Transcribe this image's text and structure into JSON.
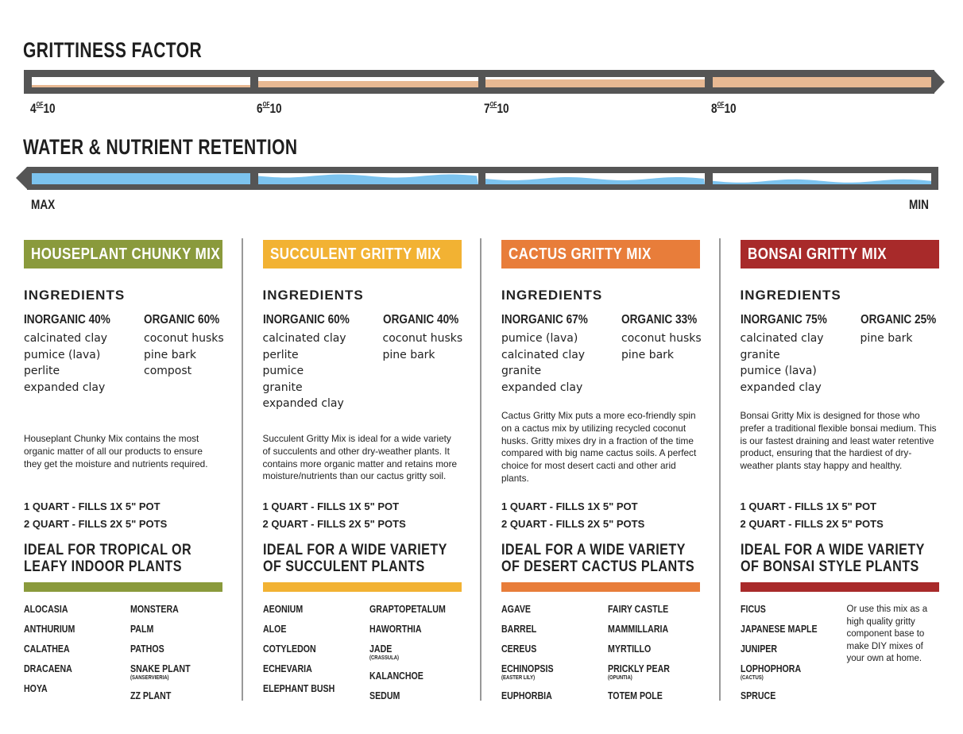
{
  "grittiness": {
    "title": "GRITTINESS FACTOR",
    "fill_color": "#e8b993",
    "levels": [
      {
        "value": "4",
        "of": "OF",
        "max": "10"
      },
      {
        "value": "6",
        "of": "OF",
        "max": "10"
      },
      {
        "value": "7",
        "of": "OF",
        "max": "10"
      },
      {
        "value": "8",
        "of": "OF",
        "max": "10"
      }
    ]
  },
  "retention": {
    "title": "WATER & NUTRIENT RETENTION",
    "fill_color": "#7cc3ee",
    "levels": [
      1.0,
      0.75,
      0.5,
      0.3
    ],
    "max_label": "MAX",
    "min_label": "MIN"
  },
  "mixes": [
    {
      "name": "HOUSEPLANT CHUNKY MIX",
      "color": "#8a9a3c",
      "ingredients_heading": "INGREDIENTS",
      "inorganic_heading": "INORGANIC 40%",
      "inorganic": [
        "calcinated clay",
        "pumice (lava)",
        "perlite",
        "expanded clay"
      ],
      "organic_heading": "ORGANIC 60%",
      "organic": [
        "coconut husks",
        "pine bark",
        "compost"
      ],
      "description": "Houseplant Chunky Mix contains the most organic matter of all our products to ensure they get the moisture and nutrients required.",
      "quart1": "1 QUART - FILLS 1X 5\" POT",
      "quart2": "2 QUART - FILLS 2X 5\" POTS",
      "ideal": [
        "IDEAL FOR TROPICAL OR",
        "LEAFY INDOOR PLANTS"
      ],
      "plants_left": [
        {
          "n": "ALOCASIA"
        },
        {
          "n": "ANTHURIUM"
        },
        {
          "n": "CALATHEA"
        },
        {
          "n": "DRACAENA"
        },
        {
          "n": "HOYA"
        }
      ],
      "plants_right": [
        {
          "n": "MONSTERA"
        },
        {
          "n": "PALM"
        },
        {
          "n": "PATHOS"
        },
        {
          "n": "SNAKE PLANT",
          "s": "(SANSERVIERIA)"
        },
        {
          "n": "ZZ PLANT"
        }
      ]
    },
    {
      "name": "SUCCULENT GRITTY MIX",
      "color": "#f2b233",
      "ingredients_heading": "INGREDIENTS",
      "inorganic_heading": "INORGANIC 60%",
      "inorganic": [
        "calcinated clay",
        "perlite",
        "pumice",
        "granite",
        "expanded clay"
      ],
      "organic_heading": "ORGANIC 40%",
      "organic": [
        "coconut husks",
        "pine bark"
      ],
      "description": "Succulent Gritty Mix is ideal for a wide variety of succulents and other dry-weather plants. It contains more organic matter and retains more moisture/nutrients than our cactus gritty soil.",
      "quart1": "1 QUART - FILLS 1X 5\" POT",
      "quart2": "2 QUART - FILLS 2X 5\" POTS",
      "ideal": [
        "IDEAL FOR A WIDE VARIETY",
        "OF SUCCULENT PLANTS"
      ],
      "plants_left": [
        {
          "n": "AEONIUM"
        },
        {
          "n": "ALOE"
        },
        {
          "n": "COTYLEDON"
        },
        {
          "n": "ECHEVARIA"
        },
        {
          "n": "ELEPHANT BUSH"
        }
      ],
      "plants_right": [
        {
          "n": "GRAPTOPETALUM"
        },
        {
          "n": "HAWORTHIA"
        },
        {
          "n": "JADE",
          "s": "(CRASSULA)"
        },
        {
          "n": "KALANCHOE"
        },
        {
          "n": "SEDUM"
        }
      ]
    },
    {
      "name": "CACTUS GRITTY MIX",
      "color": "#e87d3a",
      "ingredients_heading": "INGREDIENTS",
      "inorganic_heading": "INORGANIC 67%",
      "inorganic": [
        "pumice (lava)",
        "calcinated clay",
        "granite",
        "expanded clay"
      ],
      "organic_heading": "ORGANIC 33%",
      "organic": [
        "coconut husks",
        "pine bark"
      ],
      "description": "Cactus Gritty Mix puts a more eco-friendly spin on a cactus mix by utilizing recycled coconut husks. Gritty mixes dry in a fraction of the time compared with big name cactus soils. A perfect choice for most desert cacti and other arid plants.",
      "quart1": "1 QUART - FILLS 1X 5\" POT",
      "quart2": "2 QUART - FILLS 2X 5\" POTS",
      "ideal": [
        "IDEAL FOR A WIDE VARIETY",
        "OF DESERT CACTUS PLANTS"
      ],
      "plants_left": [
        {
          "n": "AGAVE"
        },
        {
          "n": "BARREL"
        },
        {
          "n": "CEREUS"
        },
        {
          "n": "ECHINOPSIS",
          "s": "(EASTER LILY)"
        },
        {
          "n": "EUPHORBIA"
        }
      ],
      "plants_right": [
        {
          "n": "FAIRY CASTLE"
        },
        {
          "n": "MAMMILLARIA"
        },
        {
          "n": "MYRTILLO"
        },
        {
          "n": "PRICKLY PEAR",
          "s": "(OPUNTIA)"
        },
        {
          "n": "TOTEM POLE"
        }
      ]
    },
    {
      "name": "BONSAI GRITTY MIX",
      "color": "#a82a2a",
      "ingredients_heading": "INGREDIENTS",
      "inorganic_heading": "INORGANIC 75%",
      "inorganic": [
        "calcinated clay",
        "granite",
        "pumice (lava)",
        "expanded clay"
      ],
      "organic_heading": "ORGANIC 25%",
      "organic": [
        "pine bark"
      ],
      "description": "Bonsai Gritty Mix is designed for those who prefer a traditional flexible bonsai medium. This is our fastest draining and least water retentive product, ensuring that the hardiest of dry-weather plants stay happy and healthy.",
      "quart1": "1 QUART - FILLS 1X 5\" POT",
      "quart2": "2 QUART - FILLS 2X 5\" POTS",
      "ideal": [
        "IDEAL FOR A WIDE VARIETY",
        "OF BONSAI STYLE PLANTS"
      ],
      "plants_left": [
        {
          "n": "FICUS"
        },
        {
          "n": "JAPANESE MAPLE"
        },
        {
          "n": "JUNIPER"
        },
        {
          "n": "LOPHOPHORA",
          "s": "(CACTUS)"
        },
        {
          "n": "SPRUCE"
        }
      ],
      "note": "Or use this mix as a high quality gritty component base to make DIY mixes of your own at home."
    }
  ]
}
